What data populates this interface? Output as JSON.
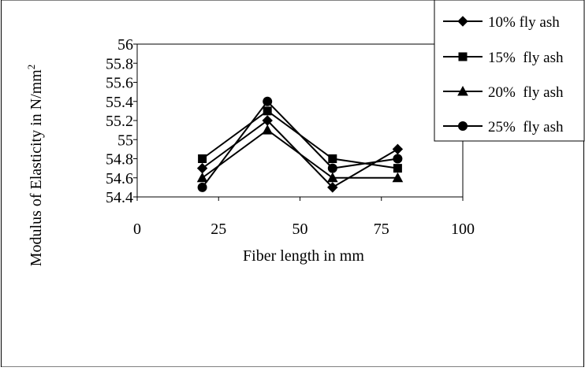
{
  "chart_data": {
    "type": "line",
    "title": "",
    "xlabel": "Fiber length in mm",
    "ylabel": "Modulus of Elasticity in N/mm",
    "ylabel_superscript": "2",
    "x": [
      20,
      40,
      60,
      80
    ],
    "xlim": [
      0,
      100
    ],
    "ylim": [
      54.4,
      56
    ],
    "xticks": [
      "0",
      "25",
      "50",
      "75",
      "100"
    ],
    "yticks": [
      "56",
      "55.8",
      "55.6",
      "55.4",
      "55.2",
      "55",
      "54.8",
      "54.6",
      "54.4"
    ],
    "grid": false,
    "legend_position": "top-right",
    "series": [
      {
        "name": "10% fly ash",
        "marker": "diamond",
        "values": [
          54.7,
          55.2,
          54.5,
          54.9
        ]
      },
      {
        "name": "15%  fly ash",
        "marker": "square",
        "values": [
          54.8,
          55.3,
          54.8,
          54.7
        ]
      },
      {
        "name": "20%  fly ash",
        "marker": "triangle",
        "values": [
          54.6,
          55.1,
          54.6,
          54.6
        ]
      },
      {
        "name": "25%  fly ash",
        "marker": "circle",
        "values": [
          54.5,
          55.4,
          54.7,
          54.8
        ]
      }
    ],
    "line_color": "#000000"
  }
}
